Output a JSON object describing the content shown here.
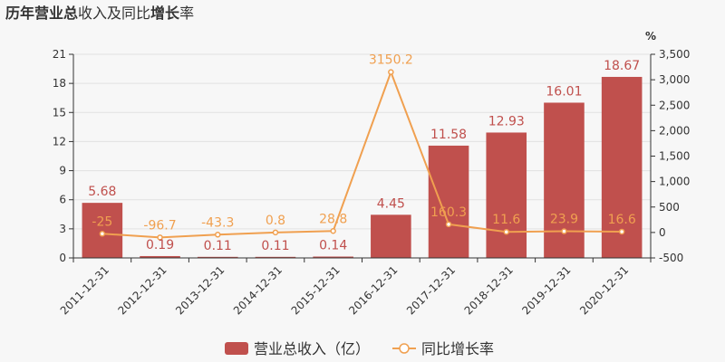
{
  "title": {
    "prefix": "历年",
    "strong1": "营业总",
    "mid": "收入及同比",
    "strong2": "增长",
    "suffix": "率"
  },
  "colors": {
    "bar": "#c0504d",
    "line": "#f0a050",
    "bar_label": "#c0504d",
    "line_label": "#f0a050",
    "axis_text": "#333333",
    "grid": "#e2e2e2"
  },
  "chart_data": {
    "type": "bar+line",
    "categories": [
      "2011-12-31",
      "2012-12-31",
      "2013-12-31",
      "2014-12-31",
      "2015-12-31",
      "2016-12-31",
      "2017-12-31",
      "2018-12-31",
      "2019-12-31",
      "2020-12-31"
    ],
    "series": [
      {
        "name": "营业总收入（亿）",
        "type": "bar",
        "axis": "left",
        "values": [
          5.68,
          0.19,
          0.11,
          0.11,
          0.14,
          4.45,
          11.58,
          12.93,
          16.01,
          18.67
        ],
        "labels": [
          "5.68",
          "0.19",
          "0.11",
          "0.11",
          "0.14",
          "4.45",
          "11.58",
          "12.93",
          "16.01",
          "18.67"
        ]
      },
      {
        "name": "同比增长率",
        "type": "line",
        "axis": "right",
        "values": [
          -25,
          -96.7,
          -43.3,
          0.8,
          28.8,
          3150.2,
          160.3,
          11.6,
          23.9,
          16.6
        ],
        "labels": [
          "-25",
          "-96.7",
          "-43.3",
          "0.8",
          "28.8",
          "3150.2",
          "160.3",
          "11.6",
          "23.9",
          "16.6"
        ]
      }
    ],
    "y_left": {
      "range": [
        0,
        21
      ],
      "ticks": [
        0,
        3,
        6,
        9,
        12,
        15,
        18,
        21
      ],
      "tick_labels": [
        "0",
        "3",
        "6",
        "9",
        "12",
        "15",
        "18",
        "21"
      ]
    },
    "y_right": {
      "range": [
        -500,
        3500
      ],
      "unit": "%",
      "ticks": [
        -500,
        0,
        500,
        1000,
        1500,
        2000,
        2500,
        3000,
        3500
      ],
      "tick_labels": [
        "-500",
        "0",
        "500",
        "1,000",
        "1,500",
        "2,000",
        "2,500",
        "3,000",
        "3,500"
      ]
    },
    "grid": true,
    "legend_position": "bottom-center"
  }
}
